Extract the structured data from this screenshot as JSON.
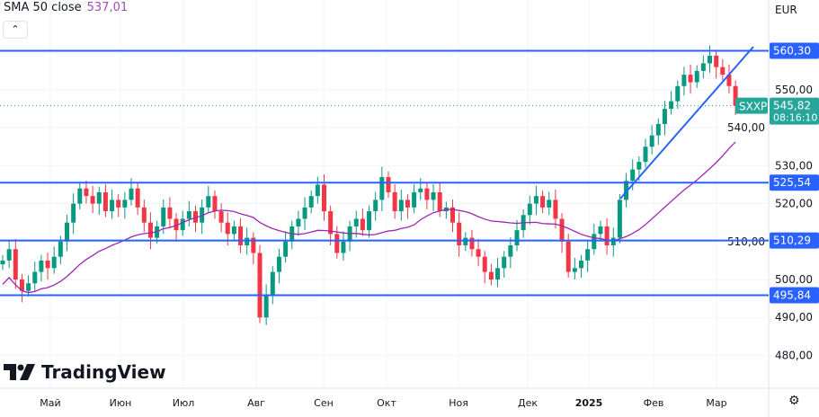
{
  "legend": {
    "label": "SMA 50 close",
    "value": "537,01"
  },
  "currency": "EUR",
  "collapse_icon": "chevron-up-icon",
  "logo": "TradingView",
  "symbol": "SXXP",
  "last_price": "545,82",
  "countdown": "08:16:10",
  "colors": {
    "up": "#089981",
    "down": "#f23645",
    "level": "#2962ff",
    "sma": "#9c27b0",
    "last": "#26a69a"
  },
  "chart_data": {
    "type": "candlestick",
    "title": "SXXP",
    "x_ticks": [
      "Май",
      "Июн",
      "Июл",
      "Авг",
      "Сен",
      "Окт",
      "Ноя",
      "Дек",
      "2025",
      "Фев",
      "Мар"
    ],
    "y_ticks": [
      "550,00",
      "540,00",
      "530,00",
      "520,00",
      "510,00",
      "500,00",
      "490,00",
      "480,00"
    ],
    "y_tick_values": [
      550,
      540,
      530,
      520,
      510,
      500,
      490,
      480
    ],
    "ylim": [
      476,
      568
    ],
    "levels": [
      {
        "value": 560.3,
        "label": "560,30"
      },
      {
        "value": 525.54,
        "label": "525,54"
      },
      {
        "value": 510.29,
        "label": "510,29"
      },
      {
        "value": 495.84,
        "label": "495,84"
      }
    ],
    "trendline": {
      "from": [
        96,
        521
      ],
      "to": [
        116,
        561
      ]
    },
    "closes": [
      505,
      508,
      500,
      497,
      499,
      502,
      505,
      503,
      506,
      510,
      515,
      520,
      524,
      522,
      520,
      523,
      518,
      521,
      519,
      521,
      524,
      519,
      515,
      511,
      514,
      519,
      516,
      513,
      516,
      518,
      515,
      519,
      522,
      518,
      515,
      512,
      514,
      509,
      511,
      507,
      490,
      496,
      502,
      506,
      510,
      514,
      516,
      519,
      522,
      525,
      518,
      512,
      507,
      510,
      514,
      516,
      513,
      518,
      521,
      527,
      523,
      518,
      521,
      519,
      523,
      524,
      521,
      523,
      518,
      519,
      515,
      509,
      511,
      508,
      506,
      502,
      500,
      503,
      506,
      509,
      513,
      517,
      520,
      522,
      519,
      521,
      516,
      510,
      502,
      503,
      505,
      508,
      512,
      514,
      509,
      511,
      521,
      526,
      529,
      531,
      535,
      538,
      541,
      545,
      547,
      551,
      554,
      552,
      555,
      557,
      559,
      556,
      554,
      551,
      545.82
    ],
    "sma_period_candles": 25
  }
}
